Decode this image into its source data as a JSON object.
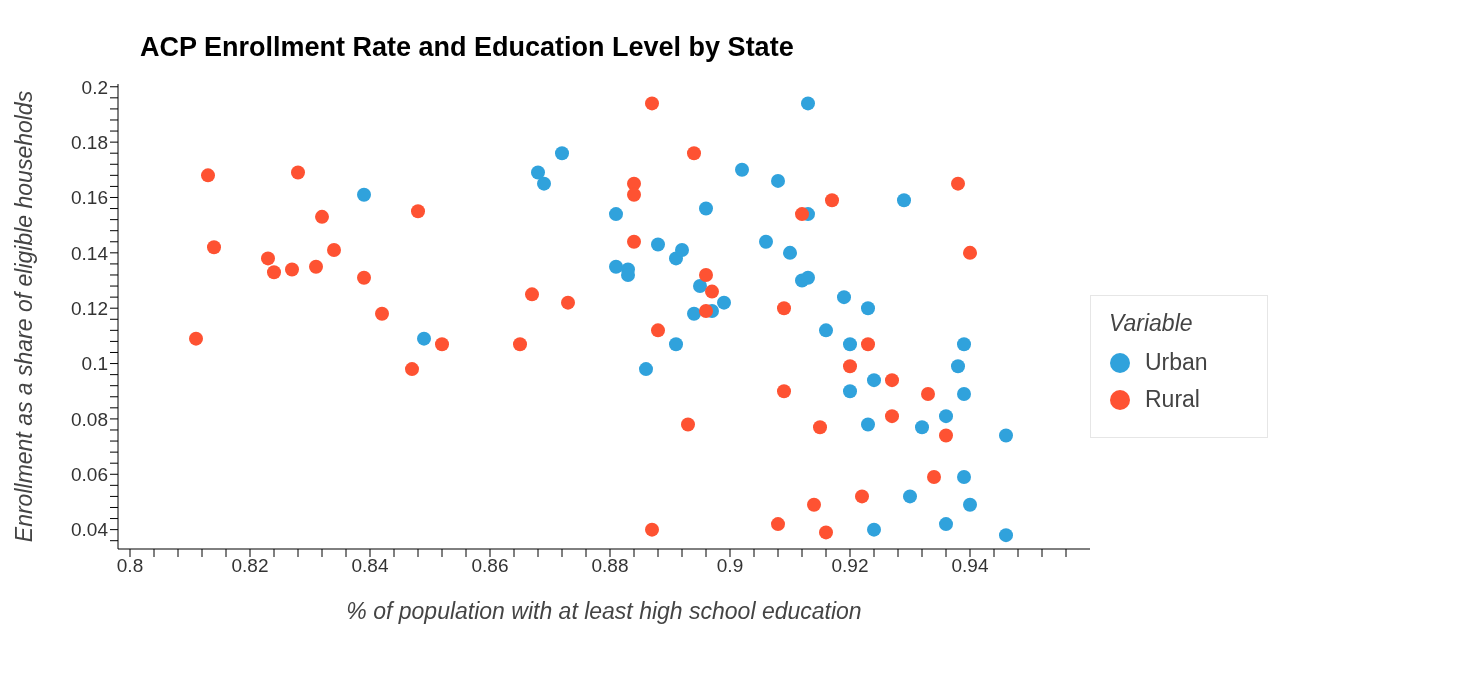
{
  "chart_data": {
    "type": "scatter",
    "title": "ACP Enrollment Rate and Education Level by State",
    "xlabel": "% of population with at least high school education",
    "ylabel": "Enrollment as a share of eligible households",
    "legend_title": "Variable",
    "legend": "right",
    "marker": "circle",
    "grid": false,
    "xlim": [
      0.798,
      0.96
    ],
    "ylim": [
      0.033,
      0.201
    ],
    "xticks": [
      0.8,
      {
        "value": 0.804,
        "label": null
      },
      {
        "value": 0.808,
        "label": null
      },
      {
        "value": 0.812,
        "label": null
      },
      {
        "value": 0.816,
        "label": null
      },
      0.82,
      {
        "value": 0.824,
        "label": null
      },
      {
        "value": 0.828,
        "label": null
      },
      {
        "value": 0.832,
        "label": null
      },
      {
        "value": 0.836,
        "label": null
      },
      0.84,
      {
        "value": 0.844,
        "label": null
      },
      {
        "value": 0.848,
        "label": null
      },
      {
        "value": 0.852,
        "label": null
      },
      {
        "value": 0.856,
        "label": null
      },
      0.86,
      {
        "value": 0.864,
        "label": null
      },
      {
        "value": 0.868,
        "label": null
      },
      {
        "value": 0.872,
        "label": null
      },
      {
        "value": 0.876,
        "label": null
      },
      0.88,
      {
        "value": 0.884,
        "label": null
      },
      {
        "value": 0.888,
        "label": null
      },
      {
        "value": 0.892,
        "label": null
      },
      {
        "value": 0.896,
        "label": null
      },
      0.9,
      {
        "value": 0.904,
        "label": null
      },
      {
        "value": 0.908,
        "label": null
      },
      {
        "value": 0.912,
        "label": null
      },
      {
        "value": 0.916,
        "label": null
      },
      0.92,
      {
        "value": 0.924,
        "label": null
      },
      {
        "value": 0.928,
        "label": null
      },
      {
        "value": 0.932,
        "label": null
      },
      {
        "value": 0.936,
        "label": null
      },
      0.94,
      {
        "value": 0.944,
        "label": null
      },
      {
        "value": 0.948,
        "label": null
      },
      {
        "value": 0.952,
        "label": null
      },
      {
        "value": 0.956,
        "label": null
      }
    ],
    "yticks": [
      {
        "value": 0.036,
        "label": null
      },
      0.04,
      {
        "value": 0.044,
        "label": null
      },
      {
        "value": 0.048,
        "label": null
      },
      {
        "value": 0.052,
        "label": null
      },
      {
        "value": 0.056,
        "label": null
      },
      0.06,
      {
        "value": 0.064,
        "label": null
      },
      {
        "value": 0.068,
        "label": null
      },
      {
        "value": 0.072,
        "label": null
      },
      {
        "value": 0.076,
        "label": null
      },
      0.08,
      {
        "value": 0.084,
        "label": null
      },
      {
        "value": 0.088,
        "label": null
      },
      {
        "value": 0.092,
        "label": null
      },
      {
        "value": 0.096,
        "label": null
      },
      0.1,
      {
        "value": 0.104,
        "label": null
      },
      {
        "value": 0.108,
        "label": null
      },
      {
        "value": 0.112,
        "label": null
      },
      {
        "value": 0.116,
        "label": null
      },
      0.12,
      {
        "value": 0.124,
        "label": null
      },
      {
        "value": 0.128,
        "label": null
      },
      {
        "value": 0.132,
        "label": null
      },
      {
        "value": 0.136,
        "label": null
      },
      0.14,
      {
        "value": 0.144,
        "label": null
      },
      {
        "value": 0.148,
        "label": null
      },
      {
        "value": 0.152,
        "label": null
      },
      {
        "value": 0.156,
        "label": null
      },
      0.16,
      {
        "value": 0.164,
        "label": null
      },
      {
        "value": 0.168,
        "label": null
      },
      {
        "value": 0.172,
        "label": null
      },
      {
        "value": 0.176,
        "label": null
      },
      0.18,
      {
        "value": 0.184,
        "label": null
      },
      {
        "value": 0.188,
        "label": null
      },
      {
        "value": 0.192,
        "label": null
      },
      {
        "value": 0.196,
        "label": null
      },
      0.2
    ],
    "series": [
      {
        "name": "Urban",
        "color": "#30a2dc",
        "x": [
          0.839,
          0.849,
          0.868,
          0.869,
          0.872,
          0.881,
          0.881,
          0.883,
          0.883,
          0.886,
          0.888,
          0.891,
          0.892,
          0.891,
          0.894,
          0.895,
          0.896,
          0.897,
          0.899,
          0.902,
          0.906,
          0.908,
          0.91,
          0.912,
          0.913,
          0.913,
          0.913,
          0.916,
          0.919,
          0.92,
          0.92,
          0.923,
          0.924,
          0.923,
          0.924,
          0.929,
          0.93,
          0.932,
          0.936,
          0.936,
          0.938,
          0.939,
          0.939,
          0.939,
          0.94,
          0.946,
          0.946
        ],
        "values": [
          0.161,
          0.109,
          0.169,
          0.165,
          0.176,
          0.154,
          0.135,
          0.134,
          0.132,
          0.098,
          0.143,
          0.138,
          0.141,
          0.107,
          0.118,
          0.128,
          0.156,
          0.119,
          0.122,
          0.17,
          0.144,
          0.166,
          0.14,
          0.13,
          0.131,
          0.154,
          0.194,
          0.112,
          0.124,
          0.107,
          0.09,
          0.12,
          0.094,
          0.078,
          0.04,
          0.159,
          0.052,
          0.077,
          0.081,
          0.042,
          0.099,
          0.107,
          0.089,
          0.059,
          0.049,
          0.074,
          0.038
        ]
      },
      {
        "name": "Rural",
        "color": "#fe5232",
        "x": [
          0.811,
          0.813,
          0.814,
          0.823,
          0.824,
          0.827,
          0.828,
          0.831,
          0.832,
          0.834,
          0.839,
          0.842,
          0.848,
          0.847,
          0.852,
          0.865,
          0.867,
          0.873,
          0.887,
          0.884,
          0.884,
          0.884,
          0.888,
          0.887,
          0.893,
          0.894,
          0.896,
          0.897,
          0.896,
          0.912,
          0.909,
          0.909,
          0.908,
          0.917,
          0.914,
          0.915,
          0.916,
          0.923,
          0.92,
          0.922,
          0.927,
          0.927,
          0.933,
          0.934,
          0.936,
          0.938,
          0.94
        ],
        "values": [
          0.109,
          0.168,
          0.142,
          0.138,
          0.133,
          0.134,
          0.169,
          0.135,
          0.153,
          0.141,
          0.131,
          0.118,
          0.155,
          0.098,
          0.107,
          0.107,
          0.125,
          0.122,
          0.194,
          0.165,
          0.161,
          0.144,
          0.112,
          0.04,
          0.078,
          0.176,
          0.132,
          0.126,
          0.119,
          0.154,
          0.12,
          0.09,
          0.042,
          0.159,
          0.049,
          0.077,
          0.039,
          0.107,
          0.099,
          0.052,
          0.094,
          0.081,
          0.089,
          0.059,
          0.074,
          0.165,
          0.14
        ]
      }
    ]
  }
}
